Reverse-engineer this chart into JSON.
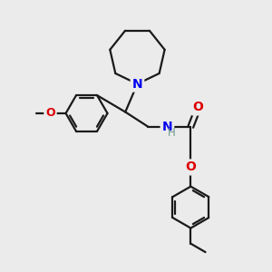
{
  "bg_color": "#ebebeb",
  "bond_color": "#1a1a1a",
  "bond_width": 1.6,
  "N_color": "#0000ee",
  "O_color": "#dd0000",
  "H_color": "#6a9a8a",
  "figsize": [
    3.0,
    3.0
  ],
  "dpi": 100,
  "xlim": [
    0,
    10
  ],
  "ylim": [
    0,
    10
  ]
}
